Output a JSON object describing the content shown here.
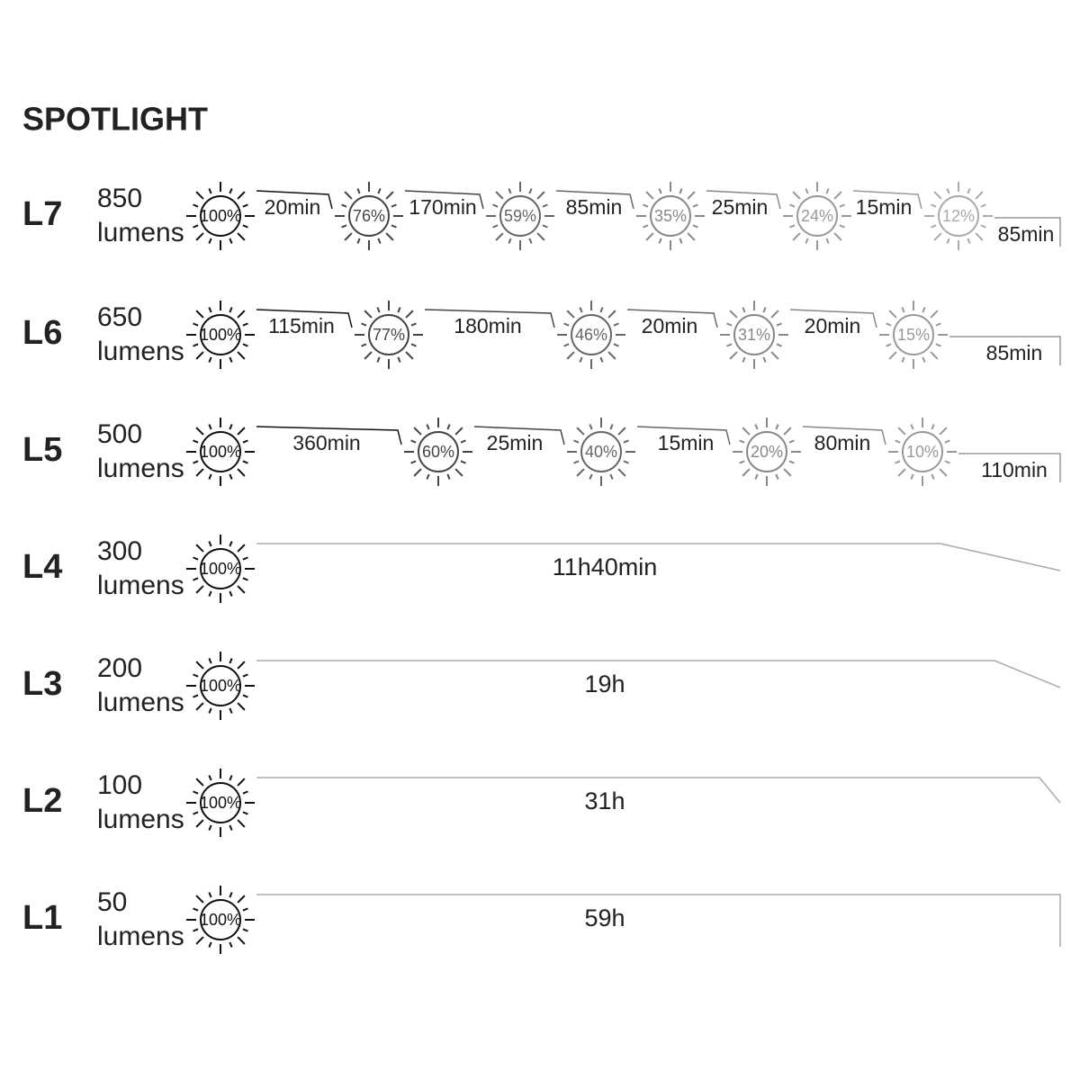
{
  "title": "SPOTLIGHT",
  "levels": [
    {
      "label": "L7",
      "lumens": "850",
      "unit": "lumens",
      "steps": [
        {
          "percent": "100%",
          "duration": "20min"
        },
        {
          "percent": "76%",
          "duration": "170min"
        },
        {
          "percent": "59%",
          "duration": "85min"
        },
        {
          "percent": "35%",
          "duration": "25min"
        },
        {
          "percent": "24%",
          "duration": "15min"
        },
        {
          "percent": "12%",
          "duration": "85min"
        }
      ]
    },
    {
      "label": "L6",
      "lumens": "650",
      "unit": "lumens",
      "steps": [
        {
          "percent": "100%",
          "duration": "115min"
        },
        {
          "percent": "77%",
          "duration": "180min"
        },
        {
          "percent": "46%",
          "duration": "20min"
        },
        {
          "percent": "31%",
          "duration": "20min"
        },
        {
          "percent": "15%",
          "duration": "85min"
        }
      ]
    },
    {
      "label": "L5",
      "lumens": "500",
      "unit": "lumens",
      "steps": [
        {
          "percent": "100%",
          "duration": "360min"
        },
        {
          "percent": "60%",
          "duration": "25min"
        },
        {
          "percent": "40%",
          "duration": "15min"
        },
        {
          "percent": "20%",
          "duration": "80min"
        },
        {
          "percent": "10%",
          "duration": "110min"
        }
      ]
    },
    {
      "label": "L4",
      "lumens": "300",
      "unit": "lumens",
      "steps": [
        {
          "percent": "100%",
          "duration": "11h40min"
        }
      ]
    },
    {
      "label": "L3",
      "lumens": "200",
      "unit": "lumens",
      "steps": [
        {
          "percent": "100%",
          "duration": "19h"
        }
      ]
    },
    {
      "label": "L2",
      "lumens": "100",
      "unit": "lumens",
      "steps": [
        {
          "percent": "100%",
          "duration": "31h"
        }
      ]
    },
    {
      "label": "L1",
      "lumens": "50",
      "unit": "lumens",
      "steps": [
        {
          "percent": "100%",
          "duration": "59h"
        }
      ]
    }
  ]
}
